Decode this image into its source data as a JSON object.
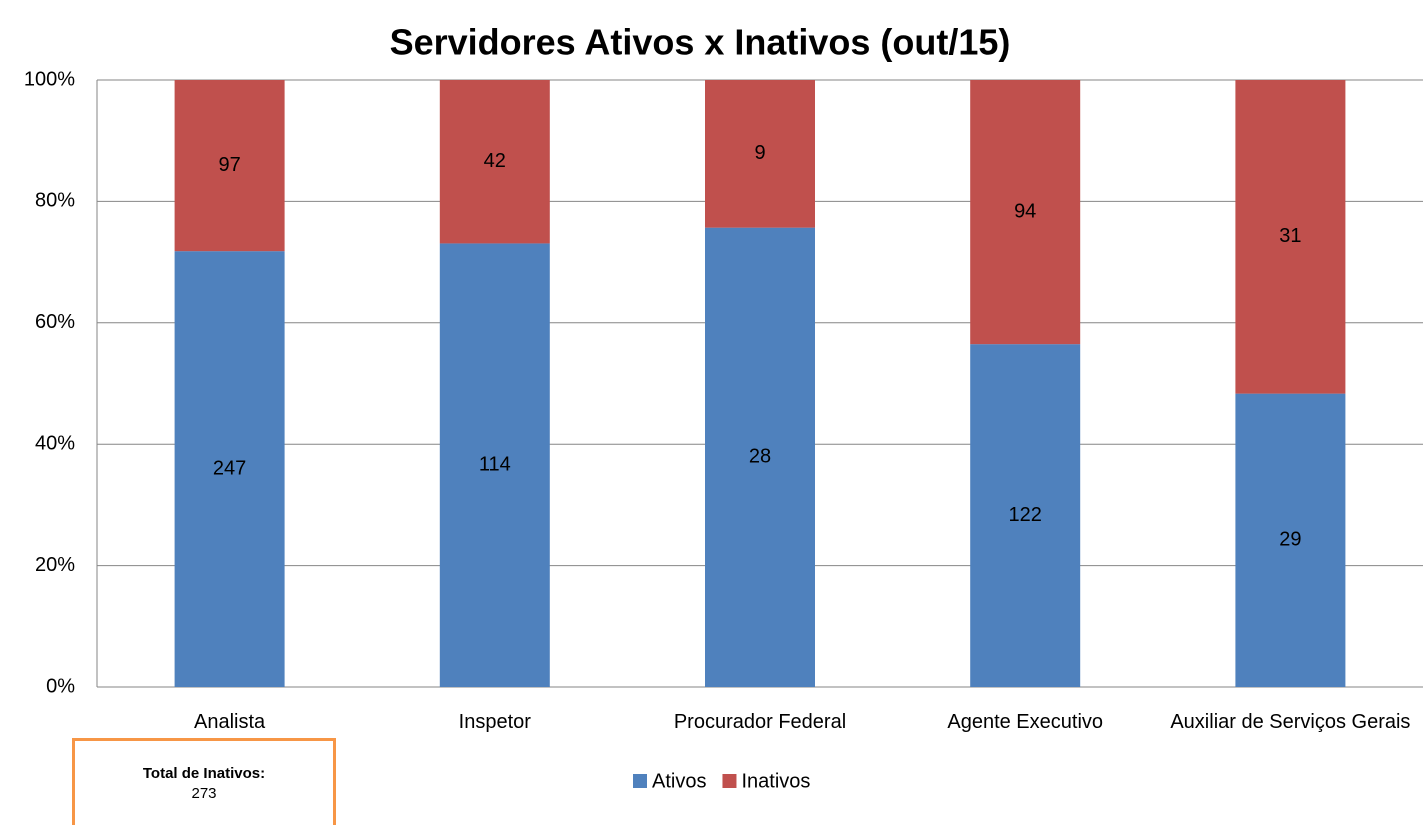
{
  "chart_data": {
    "type": "bar",
    "stacked": "percent",
    "title": "Servidores Ativos x Inativos (out/15)",
    "categories": [
      "Analista",
      "Inspetor",
      "Procurador Federal",
      "Agente Executivo",
      "Auxiliar de Serviços Gerais"
    ],
    "series": [
      {
        "name": "Ativos",
        "color": "#4f81bd",
        "values": [
          247,
          114,
          28,
          122,
          29
        ]
      },
      {
        "name": "Inativos",
        "color": "#c0504d",
        "values": [
          97,
          42,
          9,
          94,
          31
        ]
      }
    ],
    "ylim": [
      0,
      100
    ],
    "yticks": [
      {
        "value": 0,
        "label": "0%"
      },
      {
        "value": 20,
        "label": "20%"
      },
      {
        "value": 40,
        "label": "40%"
      },
      {
        "value": 60,
        "label": "60%"
      },
      {
        "value": 80,
        "label": "80%"
      },
      {
        "value": 100,
        "label": "100%"
      }
    ],
    "grid": true,
    "legend": "bottom",
    "annotation": {
      "label": "Total de Inativos:",
      "value": 273
    }
  }
}
